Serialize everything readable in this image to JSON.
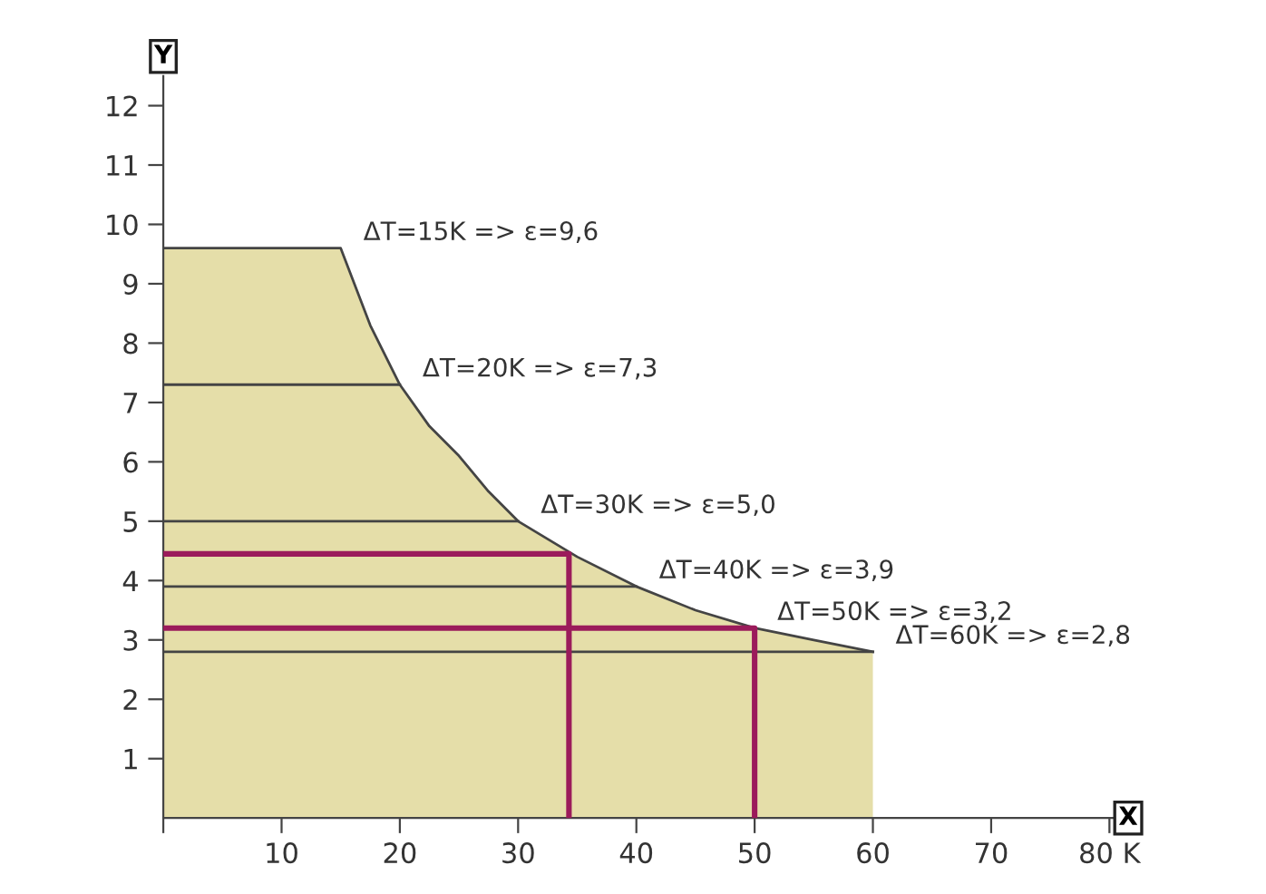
{
  "chart_data": {
    "type": "area",
    "xlabel": "X",
    "ylabel": "Y",
    "xlim": [
      0,
      82
    ],
    "ylim": [
      0,
      12.5
    ],
    "xticks": [
      {
        "value": 0,
        "label": null
      },
      10,
      20,
      30,
      40,
      50,
      60,
      70,
      {
        "value": 80,
        "label": "80 K"
      }
    ],
    "yticks": [
      1,
      2,
      3,
      4,
      5,
      6,
      7,
      8,
      9,
      10,
      11,
      12
    ],
    "grid": false,
    "legend": false,
    "series": [
      {
        "color": "#e5dea9",
        "x": [
          0,
          15,
          17.5,
          20,
          22.5,
          25,
          27.5,
          30,
          35,
          40,
          45,
          50,
          55,
          60
        ],
        "values": [
          9.6,
          9.6,
          8.3,
          7.3,
          6.6,
          6.1,
          5.5,
          5.0,
          4.4,
          3.9,
          3.5,
          3.2,
          3.0,
          2.8
        ]
      },
      {
        "type": "line",
        "color": "#444444",
        "x": [
          0,
          20
        ],
        "values": [
          7.3,
          7.3
        ]
      },
      {
        "type": "line",
        "color": "#444444",
        "x": [
          0,
          30
        ],
        "values": [
          5.0,
          5.0
        ]
      },
      {
        "type": "line",
        "color": "#444444",
        "x": [
          0,
          40
        ],
        "values": [
          3.9,
          3.9
        ]
      },
      {
        "type": "line",
        "color": "#444444",
        "x": [
          0,
          60
        ],
        "values": [
          2.8,
          2.8
        ]
      },
      {
        "type": "line",
        "color": "#9b1b5b",
        "x": [
          0,
          34.3,
          34.3
        ],
        "values": [
          4.45,
          4.45,
          0
        ]
      },
      {
        "type": "line",
        "color": "#9b1b5b",
        "x": [
          0,
          50,
          50
        ],
        "values": [
          3.2,
          3.2,
          0
        ]
      }
    ],
    "annotations": [
      {
        "text": "ΔT=15K => ε=9,6",
        "x": 15,
        "y": 9.6
      },
      {
        "text": "ΔT=20K => ε=7,3",
        "x": 20,
        "y": 7.3
      },
      {
        "text": "ΔT=30K => ε=5,0",
        "x": 30,
        "y": 5.0
      },
      {
        "text": "ΔT=40K => ε=3,9",
        "x": 40,
        "y": 3.9
      },
      {
        "text": "ΔT=50K => ε=3,2",
        "x": 50,
        "y": 3.2
      },
      {
        "text": "ΔT=60K => ε=2,8",
        "x": 60,
        "y": 2.8
      }
    ]
  }
}
